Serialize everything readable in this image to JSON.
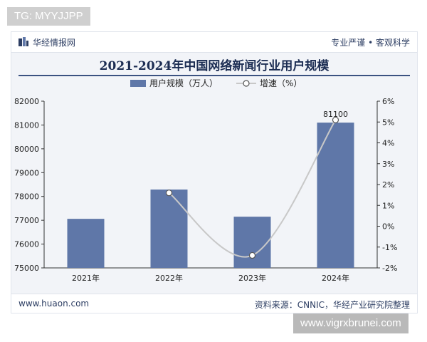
{
  "overlay": {
    "top_tag": "TG: MYYJJPP",
    "bottom_tag": "www.vigrxbrunei.com"
  },
  "header": {
    "brand": "华经情报网",
    "slogan": "专业严谨 • 客观科学"
  },
  "footer": {
    "site": "www.huaon.com",
    "source": "资料来源：CNNIC，华经产业研究院整理"
  },
  "colors": {
    "bar": "#5f77a8",
    "line": "#c8c8c8",
    "marker_fill": "#ffffff",
    "title": "#1c2d53"
  },
  "chart_data": {
    "type": "bar",
    "title": "2021-2024年中国网络新闻行业用户规模",
    "categories": [
      "2021年",
      "2022年",
      "2023年",
      "2024年"
    ],
    "series": [
      {
        "name": "用户规模（万人）",
        "type": "bar",
        "axis": "left",
        "values": [
          77060,
          78290,
          77150,
          81100
        ]
      },
      {
        "name": "增速（%）",
        "type": "line",
        "axis": "right",
        "values": [
          null,
          1.6,
          -1.4,
          5.1
        ]
      }
    ],
    "data_labels": [
      {
        "category": "2024年",
        "series": "用户规模（万人）",
        "text": "81100"
      }
    ],
    "left_axis": {
      "ylim": [
        75000,
        82000
      ],
      "ticks": [
        "75000",
        "76000",
        "77000",
        "78000",
        "79000",
        "80000",
        "81000",
        "82000"
      ]
    },
    "right_axis": {
      "ylim": [
        -2,
        6
      ],
      "ticks": [
        "-2%",
        "-1%",
        "0%",
        "1%",
        "2%",
        "3%",
        "4%",
        "5%",
        "6%"
      ]
    },
    "legend_position": "top-center",
    "grid": false
  }
}
